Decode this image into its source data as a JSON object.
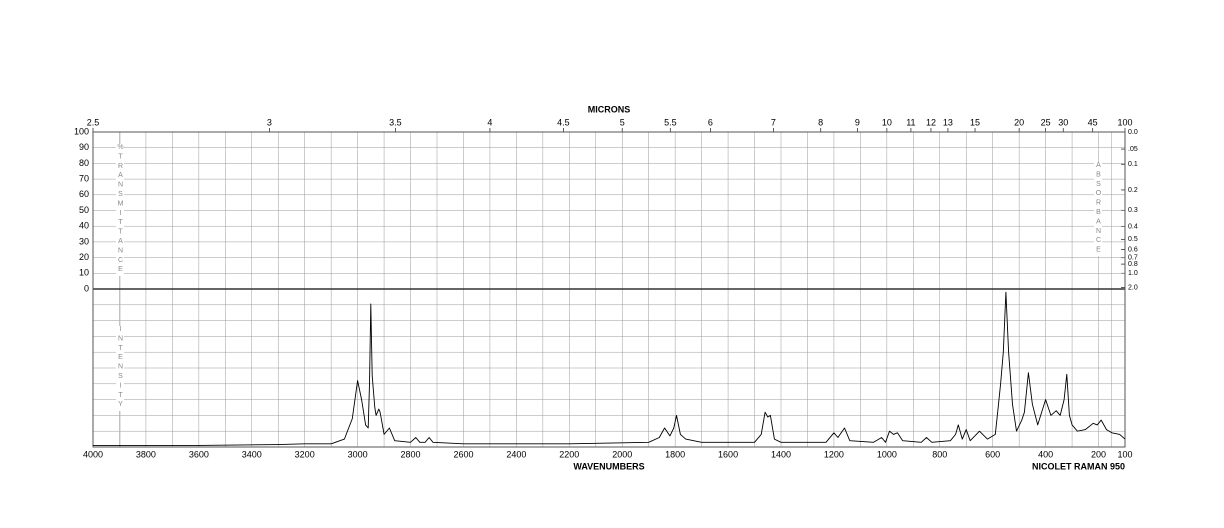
{
  "chart_data": {
    "type": "line",
    "x2_label": "MICRONS",
    "x_label": "WAVENUMBERS",
    "instrument": "NICOLET RAMAN 950",
    "y_label": "%TRANSMITTANCE",
    "y2_label": "ABSORBANCE",
    "intensity_label": "INTENSITY",
    "xlim": [
      4000,
      100
    ],
    "xticks": [
      4000,
      3800,
      3600,
      3400,
      3200,
      3000,
      2800,
      2600,
      2400,
      2200,
      2000,
      1800,
      1600,
      1400,
      1200,
      1000,
      800,
      600,
      400,
      200,
      100
    ],
    "x2lim": [
      2.5,
      100
    ],
    "x2ticks": [
      2.5,
      3,
      3.5,
      4,
      4.5,
      5,
      5.5,
      6,
      7,
      8,
      9,
      10,
      11,
      12,
      13,
      15,
      20,
      25,
      30,
      45,
      100
    ],
    "ylim": [
      0,
      100
    ],
    "yticks": [
      0,
      10,
      20,
      30,
      40,
      50,
      60,
      70,
      80,
      90,
      100
    ],
    "y2ticks": [
      {
        "value": 0,
        "label": "0.0"
      },
      {
        "value": 0.05,
        "label": ".05"
      },
      0.1,
      0.2,
      0.3,
      0.4,
      0.5,
      0.6,
      0.7,
      0.8,
      {
        "value": 1,
        "label": "1.0"
      },
      {
        "value": 2,
        "label": "2.0"
      }
    ],
    "intensity_lim": [
      0,
      100
    ],
    "grid": true,
    "series": [
      {
        "name": "Raman spectrum",
        "color": "#000000",
        "x": [
          4000,
          3600,
          3300,
          3200,
          3100,
          3050,
          3020,
          3000,
          2985,
          2970,
          2960,
          2955,
          2950,
          2945,
          2935,
          2930,
          2920,
          2915,
          2900,
          2880,
          2860,
          2800,
          2780,
          2765,
          2745,
          2730,
          2715,
          2600,
          2200,
          1900,
          1860,
          1840,
          1820,
          1805,
          1795,
          1780,
          1760,
          1700,
          1500,
          1475,
          1460,
          1450,
          1440,
          1425,
          1400,
          1230,
          1200,
          1185,
          1160,
          1140,
          1050,
          1020,
          1005,
          990,
          975,
          960,
          940,
          870,
          850,
          830,
          760,
          740,
          730,
          715,
          700,
          685,
          650,
          620,
          590,
          580,
          570,
          560,
          550,
          540,
          525,
          510,
          490,
          480,
          465,
          450,
          430,
          400,
          380,
          360,
          345,
          330,
          320,
          310,
          300,
          280,
          250,
          220,
          205,
          190,
          170,
          150,
          120,
          100
        ],
        "values": [
          1,
          1,
          1.5,
          2,
          2,
          5,
          18,
          42,
          30,
          14,
          12,
          40,
          90.5,
          45,
          25,
          20,
          24,
          22,
          8,
          12,
          4,
          3,
          6,
          3,
          3,
          6,
          3,
          2,
          2,
          3,
          6,
          12,
          7,
          12,
          20,
          8,
          5,
          3,
          3,
          8,
          22,
          19,
          20,
          5,
          3,
          3,
          9,
          6,
          12,
          4,
          3,
          6,
          3,
          10,
          8,
          9,
          4,
          3,
          6,
          3,
          4,
          8,
          14,
          5,
          11,
          4,
          10,
          5,
          8,
          24,
          40,
          60,
          98,
          60,
          27,
          10,
          17,
          22,
          47,
          27,
          14,
          30,
          20,
          23,
          20,
          30,
          46,
          20,
          14,
          10,
          11,
          15,
          14,
          17,
          11,
          9,
          8,
          5
        ]
      }
    ]
  }
}
